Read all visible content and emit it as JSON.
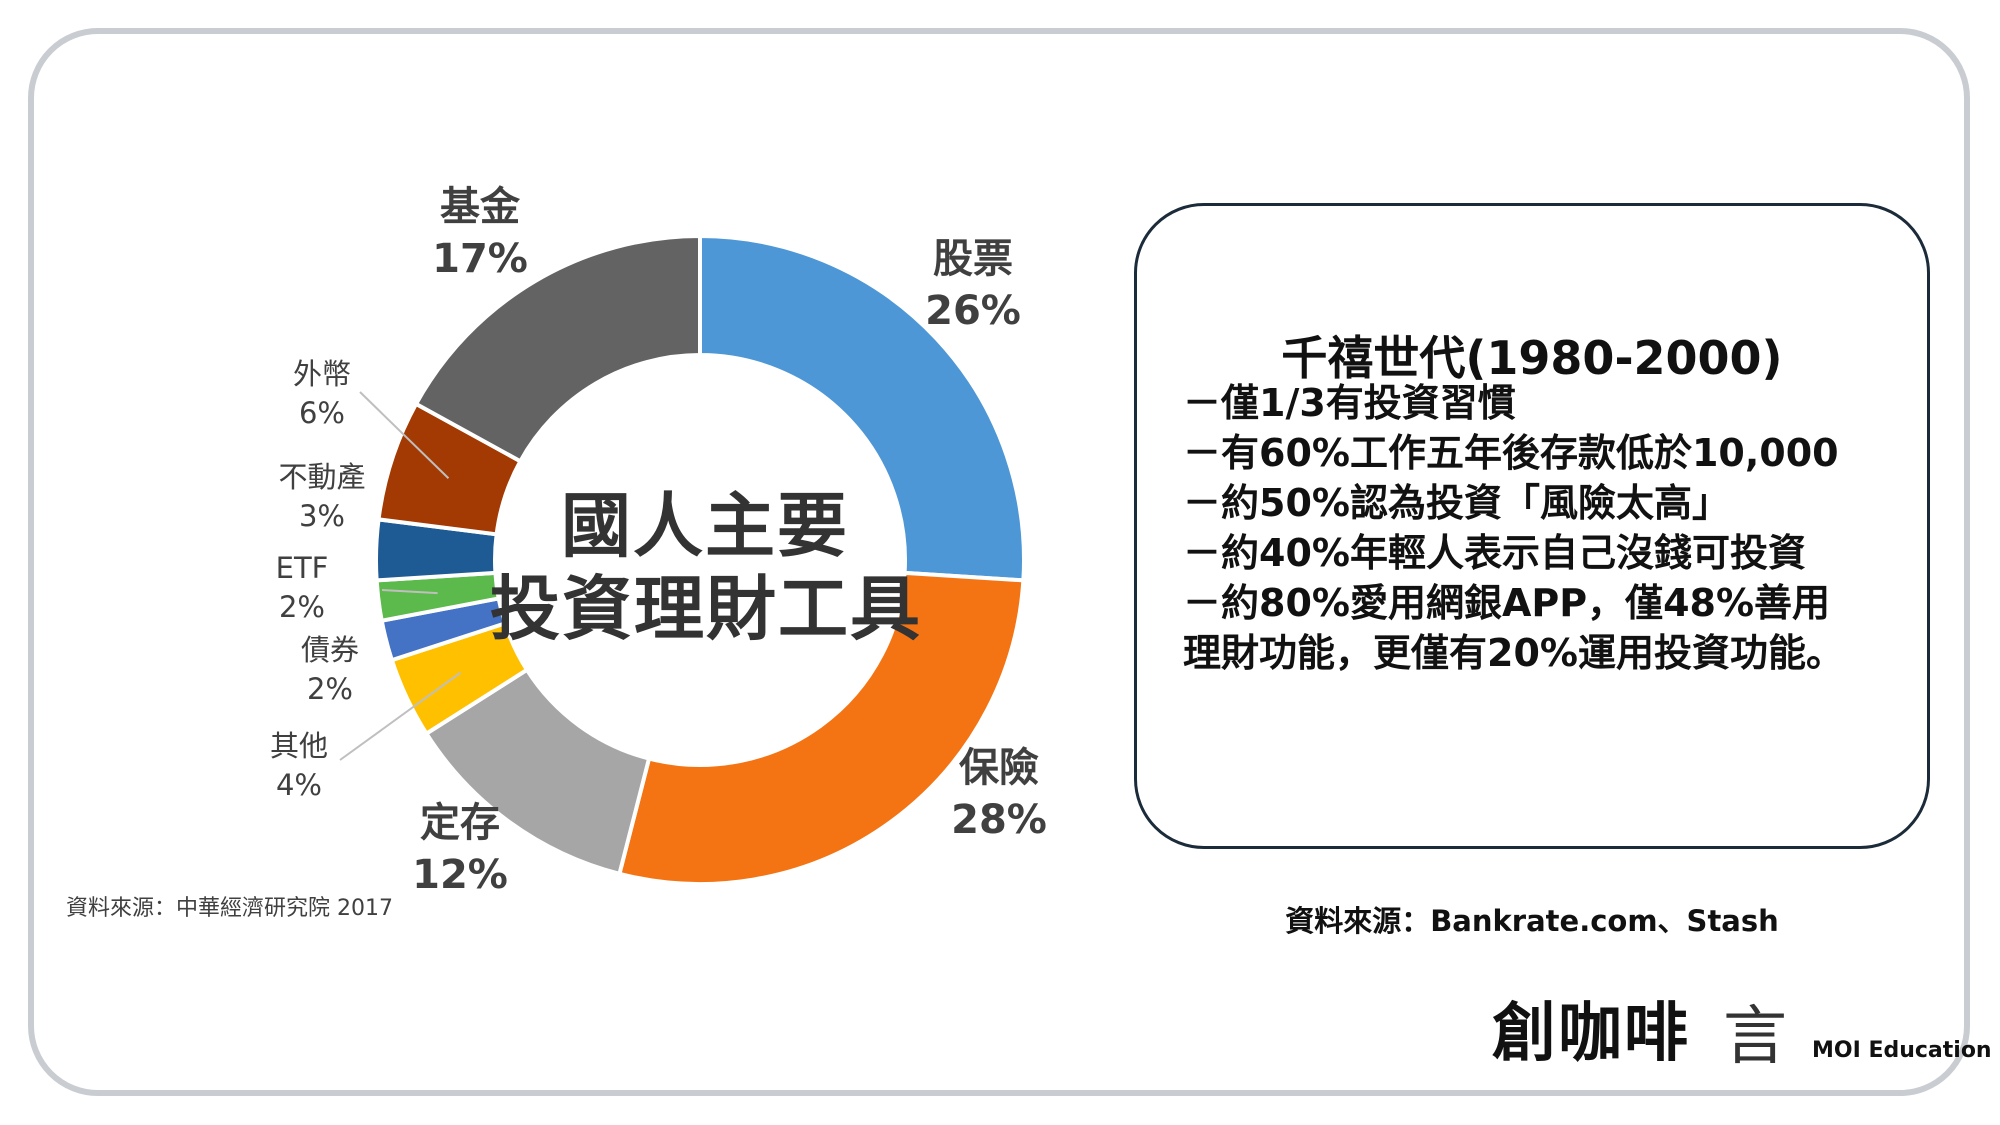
{
  "chart_data": {
    "type": "pie",
    "center_title": [
      "國人主要",
      "投資理財工具"
    ],
    "categories": [
      "股票",
      "保險",
      "定存",
      "其他",
      "債券",
      "ETF",
      "不動產",
      "外幣",
      "基金"
    ],
    "values": [
      26,
      28,
      12,
      4,
      2,
      2,
      3,
      6,
      17
    ],
    "value_labels": [
      "26%",
      "28%",
      "12%",
      "4%",
      "2%",
      "2%",
      "3%",
      "6%",
      "17%"
    ],
    "colors": [
      "#4e97d6",
      "#f47413",
      "#a6a6a6",
      "#ffc000",
      "#4472c4",
      "#5cb94b",
      "#1e5a93",
      "#a33a03",
      "#636363"
    ],
    "source": "資料來源：中華經濟研究院 2017"
  },
  "info_box": {
    "title": "千禧世代(1980-2000)",
    "lines": [
      "－僅1/3有投資習慣",
      "－有60%工作五年後存款低於10,000",
      "－約50%認為投資「風險太高」",
      "－約40%年輕人表示自己沒錢可投資",
      "－約80%愛用網銀APP，僅48%善用",
      "理財功能，更僅有20%運用投資功能。"
    ],
    "source": "資料來源：Bankrate.com、Stash"
  },
  "brand": {
    "name_cn": "創咖啡",
    "mark": "言",
    "name_en": "MOI Education"
  }
}
